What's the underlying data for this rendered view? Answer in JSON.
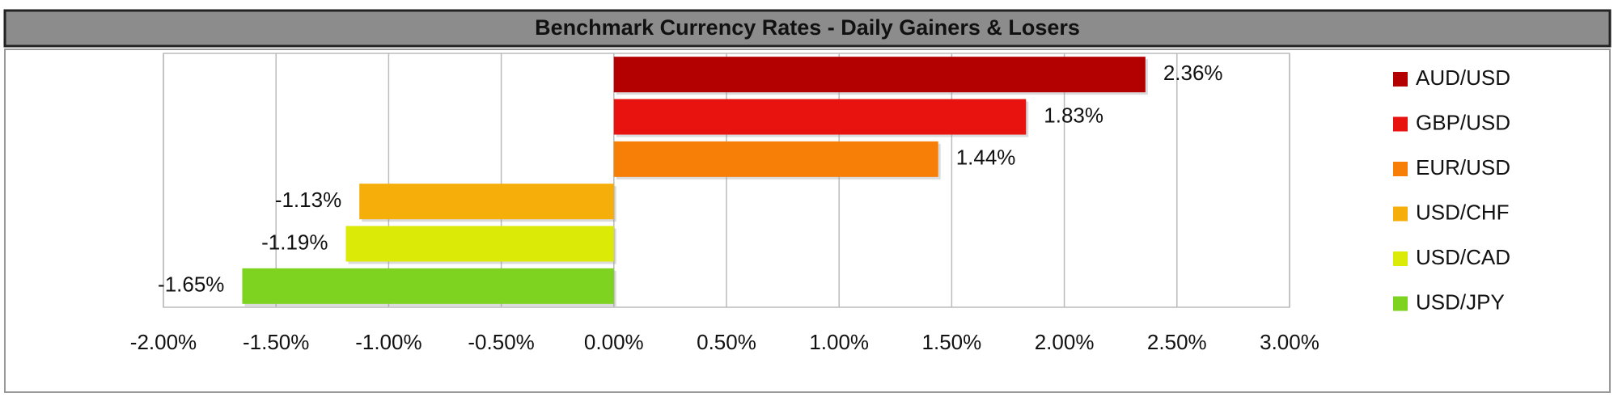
{
  "chart_data": {
    "type": "bar",
    "orientation": "horizontal",
    "title": "Benchmark Currency Rates - Daily Gainers & Losers",
    "series": [
      {
        "name": "AUD/USD",
        "color": "#b30000",
        "values": [
          2.36
        ],
        "value_labels": [
          "2.36%"
        ]
      },
      {
        "name": "GBP/USD",
        "color": "#e8120e",
        "values": [
          1.83
        ],
        "value_labels": [
          "1.83%"
        ]
      },
      {
        "name": "EUR/USD",
        "color": "#f77f07",
        "values": [
          1.44
        ],
        "value_labels": [
          "1.44%"
        ]
      },
      {
        "name": "USD/CHF",
        "color": "#f5ae0a",
        "values": [
          -1.13
        ],
        "value_labels": [
          "-1.13%"
        ]
      },
      {
        "name": "USD/CAD",
        "color": "#dbea07",
        "values": [
          -1.19
        ],
        "value_labels": [
          "-1.19%"
        ]
      },
      {
        "name": "USD/JPY",
        "color": "#7ed321",
        "values": [
          -1.65
        ],
        "value_labels": [
          "-1.65%"
        ]
      }
    ],
    "xlim": [
      -2,
      3
    ],
    "xticks": [
      {
        "value": -2,
        "label": "-2.00%"
      },
      {
        "value": -1.5,
        "label": "-1.50%"
      },
      {
        "value": -1,
        "label": "-1.00%"
      },
      {
        "value": -0.5,
        "label": "-0.50%"
      },
      {
        "value": 0,
        "label": "0.00%"
      },
      {
        "value": 0.5,
        "label": "0.50%"
      },
      {
        "value": 1,
        "label": "1.00%"
      },
      {
        "value": 1.5,
        "label": "1.50%"
      },
      {
        "value": 2,
        "label": "2.00%"
      },
      {
        "value": 2.5,
        "label": "2.50%"
      },
      {
        "value": 3,
        "label": "3.00%"
      }
    ],
    "grid": true,
    "legend": "right"
  }
}
